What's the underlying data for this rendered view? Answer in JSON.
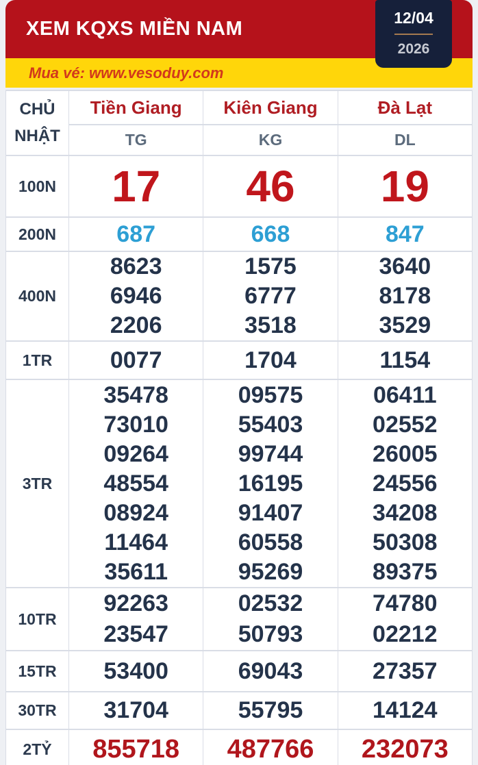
{
  "header": {
    "title": "XEM KQXS MIỀN NAM",
    "date_day": "12/04",
    "date_year": "2026"
  },
  "promo": {
    "text": "Mua vé: www.vesoduy.com"
  },
  "table": {
    "weekday_line1": "CHỦ",
    "weekday_line2": "NHẬT",
    "provinces": [
      {
        "name": "Tiền Giang",
        "code": "TG"
      },
      {
        "name": "Kiên Giang",
        "code": "KG"
      },
      {
        "name": "Đà Lạt",
        "code": "DL"
      }
    ],
    "prizes": [
      {
        "label": "100N",
        "style": "special",
        "values": [
          [
            "17"
          ],
          [
            "46"
          ],
          [
            "19"
          ]
        ]
      },
      {
        "label": "200N",
        "style": "blue",
        "values": [
          [
            "687"
          ],
          [
            "668"
          ],
          [
            "847"
          ]
        ]
      },
      {
        "label": "400N",
        "style": "normal",
        "values": [
          [
            "8623",
            "6946",
            "2206"
          ],
          [
            "1575",
            "6777",
            "3518"
          ],
          [
            "3640",
            "8178",
            "3529"
          ]
        ]
      },
      {
        "label": "1TR",
        "style": "normal",
        "values": [
          [
            "0077"
          ],
          [
            "1704"
          ],
          [
            "1154"
          ]
        ]
      },
      {
        "label": "3TR",
        "style": "normal",
        "values": [
          [
            "35478",
            "73010",
            "09264",
            "48554",
            "08924",
            "11464",
            "35611"
          ],
          [
            "09575",
            "55403",
            "99744",
            "16195",
            "91407",
            "60558",
            "95269"
          ],
          [
            "06411",
            "02552",
            "26005",
            "24556",
            "34208",
            "50308",
            "89375"
          ]
        ]
      },
      {
        "label": "10TR",
        "style": "normal",
        "values": [
          [
            "92263",
            "23547"
          ],
          [
            "02532",
            "50793"
          ],
          [
            "74780",
            "02212"
          ]
        ]
      },
      {
        "label": "15TR",
        "style": "normal",
        "values": [
          [
            "53400"
          ],
          [
            "69043"
          ],
          [
            "27357"
          ]
        ]
      },
      {
        "label": "30TR",
        "style": "normal",
        "values": [
          [
            "31704"
          ],
          [
            "55795"
          ],
          [
            "14124"
          ]
        ]
      },
      {
        "label": "2TỶ",
        "style": "jackpot",
        "values": [
          [
            "855718"
          ],
          [
            "487766"
          ],
          [
            "232073"
          ]
        ]
      }
    ]
  },
  "colors": {
    "header_red": "#b5121b",
    "banner_yellow": "#ffd60a",
    "promo_text": "#d2391c",
    "date_box_bg": "#16203a",
    "date_divider": "#a57a50",
    "special_red": "#c0161c",
    "prize_blue": "#2d9fd4",
    "num_navy": "#24334a",
    "jackpot_red": "#b0161c",
    "label_navy": "#2c3a4e",
    "code_gray": "#5c6b7c",
    "province_red": "#b01d23",
    "border_gray": "#d9dde6",
    "page_bg": "#eef0f4"
  }
}
